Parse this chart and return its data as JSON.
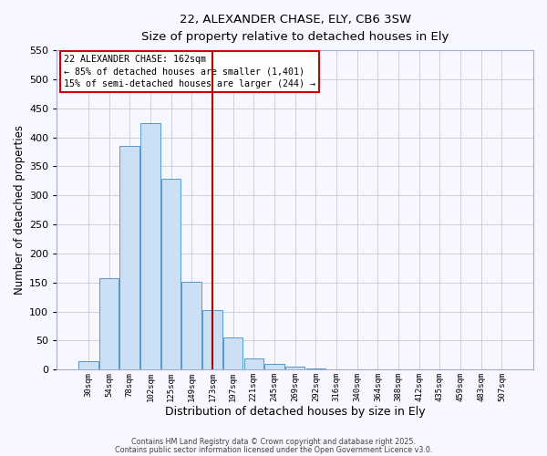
{
  "title": "22, ALEXANDER CHASE, ELY, CB6 3SW",
  "subtitle": "Size of property relative to detached houses in Ely",
  "xlabel": "Distribution of detached houses by size in Ely",
  "ylabel": "Number of detached properties",
  "bar_labels": [
    "30sqm",
    "54sqm",
    "78sqm",
    "102sqm",
    "125sqm",
    "149sqm",
    "173sqm",
    "197sqm",
    "221sqm",
    "245sqm",
    "269sqm",
    "292sqm",
    "316sqm",
    "340sqm",
    "364sqm",
    "388sqm",
    "412sqm",
    "435sqm",
    "459sqm",
    "483sqm",
    "507sqm"
  ],
  "bar_values": [
    15,
    157,
    385,
    425,
    328,
    152,
    102,
    55,
    20,
    10,
    5,
    2,
    1,
    0,
    0,
    0,
    0,
    0,
    0,
    0,
    0
  ],
  "bar_color": "#cce0f5",
  "bar_edge_color": "#5599cc",
  "vline_x": 6.0,
  "vline_color": "#aa0000",
  "annotation_title": "22 ALEXANDER CHASE: 162sqm",
  "annotation_line1": "← 85% of detached houses are smaller (1,401)",
  "annotation_line2": "15% of semi-detached houses are larger (244) →",
  "annotation_box_color": "#ffffff",
  "annotation_box_edge": "#cc0000",
  "ylim": [
    0,
    550
  ],
  "yticks": [
    0,
    50,
    100,
    150,
    200,
    250,
    300,
    350,
    400,
    450,
    500,
    550
  ],
  "bg_color": "#f7f7ff",
  "grid_color": "#c8c8dc",
  "footer1": "Contains HM Land Registry data © Crown copyright and database right 2025.",
  "footer2": "Contains public sector information licensed under the Open Government Licence v3.0."
}
